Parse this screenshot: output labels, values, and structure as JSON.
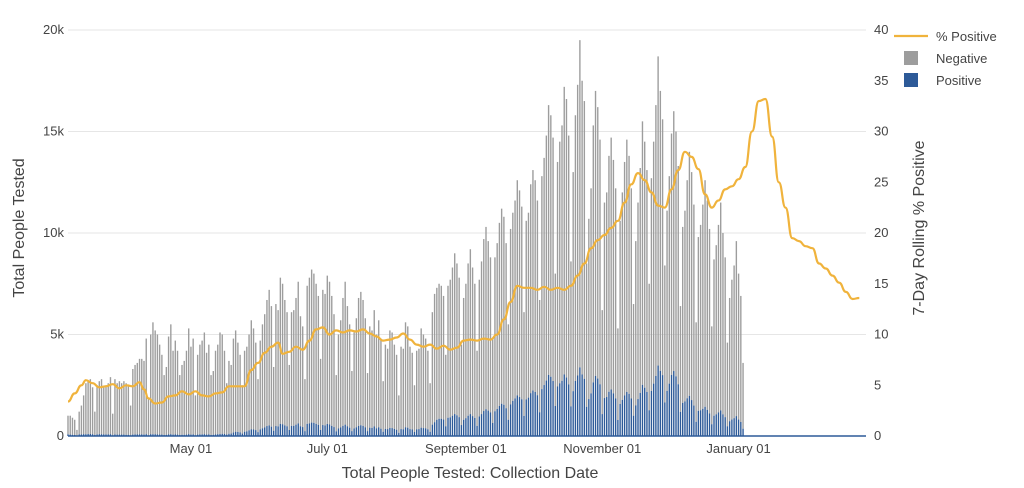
{
  "chart_data": {
    "type": "bar",
    "stacked": true,
    "secondary_line": true,
    "xlabel": "Total People Tested: Collection Date",
    "ylabel": "Total People Tested",
    "y2label": "7-Day Rolling % Positive",
    "x_range": [
      "2020-03-07",
      "2021-02-27"
    ],
    "ylim": [
      0,
      20000
    ],
    "y2lim": [
      0,
      40
    ],
    "x_ticks": [
      {
        "date": "2020-05-01",
        "label": "May 01"
      },
      {
        "date": "2020-07-01",
        "label": "July 01"
      },
      {
        "date": "2020-09-01",
        "label": "September 01"
      },
      {
        "date": "2020-11-01",
        "label": "November 01"
      },
      {
        "date": "2021-01-01",
        "label": "January 01"
      }
    ],
    "y_ticks": [
      {
        "value": 0,
        "label": "0"
      },
      {
        "value": 5000,
        "label": "5k"
      },
      {
        "value": 10000,
        "label": "10k"
      },
      {
        "value": 15000,
        "label": "15k"
      },
      {
        "value": 20000,
        "label": "20k"
      }
    ],
    "y2_ticks": [
      {
        "value": 0,
        "label": "0"
      },
      {
        "value": 5,
        "label": "5"
      },
      {
        "value": 10,
        "label": "10"
      },
      {
        "value": 15,
        "label": "15"
      },
      {
        "value": 20,
        "label": "20"
      },
      {
        "value": 25,
        "label": "25"
      },
      {
        "value": 30,
        "label": "30"
      },
      {
        "value": 35,
        "label": "35"
      },
      {
        "value": 40,
        "label": "40"
      }
    ],
    "gridlines": true,
    "legend_position": "top-right",
    "series": [
      {
        "name": "% Positive",
        "kind": "line",
        "axis": "right",
        "color": "#f0b33c"
      },
      {
        "name": "Negative",
        "kind": "bar",
        "axis": "left",
        "color": "#9d9d9d"
      },
      {
        "name": "Positive",
        "kind": "bar",
        "axis": "left",
        "color": "#2d5a98"
      }
    ],
    "daily_start": "2020-03-07",
    "total_tested_daily": [
      1000,
      1000,
      900,
      800,
      300,
      1200,
      1500,
      2000,
      2600,
      2700,
      2800,
      2400,
      1200,
      2500,
      2700,
      2800,
      2400,
      2500,
      2600,
      2900,
      1100,
      2800,
      2600,
      2700,
      2600,
      2700,
      2600,
      2500,
      1500,
      3300,
      3500,
      3600,
      3800,
      3800,
      3700,
      4800,
      1800,
      5000,
      5600,
      5200,
      5000,
      4500,
      4000,
      3000,
      3400,
      4900,
      5500,
      4200,
      4700,
      4200,
      3000,
      3500,
      3700,
      4200,
      5300,
      4400,
      4800,
      2000,
      4000,
      4500,
      4700,
      5100,
      4100,
      4500,
      3000,
      3200,
      4200,
      4500,
      5100,
      5000,
      4200,
      2600,
      3700,
      3500,
      4800,
      5200,
      4600,
      4000,
      2500,
      4200,
      4400,
      5000,
      5700,
      5300,
      4600,
      2800,
      4700,
      5500,
      6000,
      6700,
      7200,
      6400,
      3400,
      6500,
      6200,
      7800,
      7500,
      6700,
      6100,
      3500,
      6100,
      6200,
      6800,
      7600,
      5900,
      5400,
      2800,
      7400,
      7800,
      8200,
      8000,
      7500,
      6900,
      3800,
      7200,
      7000,
      7900,
      7600,
      6900,
      6000,
      3000,
      5000,
      5700,
      6800,
      7600,
      6400,
      5500,
      3200,
      5100,
      5800,
      6800,
      7100,
      6700,
      5800,
      3100,
      5400,
      5200,
      6200,
      5000,
      5700,
      4800,
      2700,
      4500,
      4300,
      5200,
      5100,
      4500,
      4000,
      2000,
      4400,
      4300,
      5600,
      5400,
      4400,
      4100,
      2500,
      4200,
      4300,
      5300,
      5000,
      4800,
      4200,
      2600,
      6100,
      7000,
      7300,
      7500,
      7400,
      6900,
      4000,
      7400,
      7700,
      8300,
      9000,
      8500,
      7800,
      4500,
      6800,
      7500,
      8500,
      9200,
      8300,
      7500,
      4200,
      7700,
      8600,
      9700,
      10300,
      9600,
      8800,
      4800,
      8800,
      9500,
      10500,
      11200,
      10800,
      9500,
      5500,
      10200,
      11000,
      11600,
      12600,
      12100,
      11300,
      6100,
      10600,
      11000,
      12400,
      13100,
      12600,
      11600,
      6700,
      12800,
      13700,
      14800,
      16300,
      15800,
      14700,
      8000,
      13500,
      14500,
      15300,
      17200,
      16600,
      14800,
      8600,
      13000,
      15800,
      17300,
      19500,
      17500,
      16500,
      8500,
      10700,
      12200,
      15300,
      17000,
      16200,
      14600,
      6200,
      11500,
      12000,
      13800,
      14700,
      13600,
      12200,
      5300,
      10600,
      12000,
      13500,
      14600,
      13800,
      12200,
      6500,
      9600,
      11500,
      13200,
      15500,
      14500,
      13100,
      7500,
      12700,
      14500,
      16300,
      18700,
      17000,
      15600,
      8400,
      11100,
      12800,
      14900,
      16000,
      15000,
      13300,
      6400,
      10300,
      11100,
      12600,
      14000,
      13000,
      11400,
      5600,
      9800,
      10400,
      11400,
      12600,
      11600,
      10200,
      5400,
      8700,
      9400,
      10400,
      11500,
      10000,
      8800,
      4600,
      6800,
      7700,
      8400,
      9600,
      8000,
      6900,
      3600
    ],
    "positive_daily": [
      80,
      70,
      60,
      50,
      20,
      80,
      80,
      90,
      90,
      100,
      100,
      90,
      50,
      80,
      90,
      90,
      80,
      80,
      80,
      90,
      40,
      80,
      70,
      70,
      70,
      70,
      60,
      60,
      40,
      70,
      80,
      80,
      80,
      80,
      70,
      90,
      40,
      90,
      90,
      90,
      80,
      70,
      70,
      50,
      60,
      80,
      90,
      70,
      80,
      70,
      50,
      60,
      60,
      70,
      90,
      70,
      80,
      40,
      70,
      80,
      80,
      90,
      70,
      80,
      50,
      60,
      80,
      90,
      100,
      110,
      100,
      70,
      110,
      120,
      170,
      210,
      200,
      180,
      120,
      210,
      230,
      280,
      330,
      320,
      290,
      190,
      320,
      380,
      420,
      490,
      520,
      460,
      260,
      490,
      470,
      600,
      580,
      520,
      480,
      300,
      500,
      500,
      560,
      620,
      480,
      440,
      240,
      600,
      620,
      660,
      650,
      600,
      550,
      300,
      540,
      520,
      590,
      570,
      500,
      440,
      230,
      370,
      420,
      500,
      560,
      480,
      410,
      240,
      370,
      430,
      500,
      530,
      500,
      430,
      240,
      410,
      400,
      470,
      380,
      430,
      360,
      210,
      350,
      340,
      400,
      390,
      350,
      310,
      160,
      340,
      330,
      430,
      410,
      340,
      320,
      200,
      330,
      340,
      410,
      390,
      380,
      330,
      210,
      560,
      680,
      800,
      850,
      850,
      810,
      480,
      900,
      920,
      1000,
      1080,
      1020,
      930,
      540,
      800,
      880,
      1000,
      1080,
      980,
      890,
      500,
      960,
      1080,
      1230,
      1320,
      1250,
      1160,
      640,
      1220,
      1330,
      1480,
      1590,
      1540,
      1370,
      800,
      1560,
      1730,
      1850,
      2000,
      1920,
      1810,
      990,
      1800,
      1890,
      2110,
      2240,
      2170,
      2010,
      1170,
      2310,
      2510,
      2730,
      3010,
      2920,
      2710,
      1480,
      2440,
      2600,
      2720,
      3030,
      2880,
      2540,
      1460,
      2210,
      2710,
      2980,
      3380,
      3030,
      2820,
      1440,
      1820,
      2100,
      2640,
      2960,
      2830,
      2550,
      1080,
      1870,
      1920,
      2180,
      2290,
      2100,
      1850,
      790,
      1580,
      1780,
      2000,
      2170,
      2080,
      1850,
      1000,
      1510,
      1820,
      2120,
      2520,
      2380,
      2170,
      1270,
      2220,
      2580,
      2960,
      3470,
      3210,
      3000,
      1650,
      2220,
      2580,
      3010,
      3200,
      2940,
      2550,
      1190,
      1630,
      1700,
      1860,
      1980,
      1770,
      1500,
      700,
      1240,
      1270,
      1340,
      1440,
      1290,
      1110,
      580,
      1000,
      1070,
      1160,
      1260,
      1070,
      930,
      480,
      730,
      810,
      880,
      980,
      810,
      690,
      360
    ],
    "pct_positive_points": [
      [
        "2020-03-07",
        3.4
      ],
      [
        "2020-03-10",
        4.2
      ],
      [
        "2020-03-13",
        5.0
      ],
      [
        "2020-03-15",
        5.5
      ],
      [
        "2020-03-18",
        5.2
      ],
      [
        "2020-03-21",
        4.8
      ],
      [
        "2020-03-24",
        4.9
      ],
      [
        "2020-03-27",
        5.1
      ],
      [
        "2020-03-30",
        4.7
      ],
      [
        "2020-04-02",
        5.0
      ],
      [
        "2020-04-05",
        4.9
      ],
      [
        "2020-04-08",
        5.3
      ],
      [
        "2020-04-10",
        4.6
      ],
      [
        "2020-04-12",
        3.7
      ],
      [
        "2020-04-15",
        3.2
      ],
      [
        "2020-04-18",
        3.3
      ],
      [
        "2020-04-21",
        3.9
      ],
      [
        "2020-04-24",
        4.0
      ],
      [
        "2020-04-27",
        4.4
      ],
      [
        "2020-04-30",
        4.1
      ],
      [
        "2020-05-03",
        4.4
      ],
      [
        "2020-05-06",
        4.0
      ],
      [
        "2020-05-09",
        3.9
      ],
      [
        "2020-05-12",
        4.2
      ],
      [
        "2020-05-15",
        4.3
      ],
      [
        "2020-05-18",
        4.9
      ],
      [
        "2020-05-21",
        4.9
      ],
      [
        "2020-05-25",
        4.9
      ],
      [
        "2020-05-28",
        6.5
      ],
      [
        "2020-05-31",
        7.2
      ],
      [
        "2020-06-03",
        8.2
      ],
      [
        "2020-06-06",
        8.8
      ],
      [
        "2020-06-09",
        9.2
      ],
      [
        "2020-06-11",
        8.1
      ],
      [
        "2020-06-14",
        8.3
      ],
      [
        "2020-06-17",
        8.8
      ],
      [
        "2020-06-20",
        8.5
      ],
      [
        "2020-06-23",
        9.4
      ],
      [
        "2020-06-26",
        10.5
      ],
      [
        "2020-06-29",
        10.7
      ],
      [
        "2020-07-02",
        10.0
      ],
      [
        "2020-07-05",
        10.4
      ],
      [
        "2020-07-08",
        10.2
      ],
      [
        "2020-07-11",
        10.4
      ],
      [
        "2020-07-14",
        10.3
      ],
      [
        "2020-07-17",
        10.5
      ],
      [
        "2020-07-20",
        10.1
      ],
      [
        "2020-07-23",
        9.8
      ],
      [
        "2020-07-26",
        9.4
      ],
      [
        "2020-07-29",
        9.5
      ],
      [
        "2020-08-01",
        9.7
      ],
      [
        "2020-08-04",
        10.1
      ],
      [
        "2020-08-07",
        9.5
      ],
      [
        "2020-08-10",
        9.0
      ],
      [
        "2020-08-13",
        8.8
      ],
      [
        "2020-08-16",
        9.0
      ],
      [
        "2020-08-19",
        8.6
      ],
      [
        "2020-08-22",
        8.9
      ],
      [
        "2020-08-25",
        8.5
      ],
      [
        "2020-08-28",
        8.7
      ],
      [
        "2020-08-31",
        9.4
      ],
      [
        "2020-09-03",
        9.5
      ],
      [
        "2020-09-06",
        9.4
      ],
      [
        "2020-09-09",
        9.6
      ],
      [
        "2020-09-12",
        9.5
      ],
      [
        "2020-09-15",
        10.0
      ],
      [
        "2020-09-18",
        11.5
      ],
      [
        "2020-09-21",
        13.2
      ],
      [
        "2020-09-24",
        14.8
      ],
      [
        "2020-09-27",
        14.6
      ],
      [
        "2020-09-30",
        14.6
      ],
      [
        "2020-10-03",
        14.4
      ],
      [
        "2020-10-06",
        14.7
      ],
      [
        "2020-10-09",
        14.4
      ],
      [
        "2020-10-12",
        14.6
      ],
      [
        "2020-10-15",
        14.4
      ],
      [
        "2020-10-18",
        14.8
      ],
      [
        "2020-10-21",
        15.8
      ],
      [
        "2020-10-24",
        17.0
      ],
      [
        "2020-10-27",
        18.5
      ],
      [
        "2020-10-30",
        19.3
      ],
      [
        "2020-11-02",
        19.8
      ],
      [
        "2020-11-05",
        20.5
      ],
      [
        "2020-11-08",
        21.2
      ],
      [
        "2020-11-11",
        23.0
      ],
      [
        "2020-11-14",
        24.8
      ],
      [
        "2020-11-17",
        25.9
      ],
      [
        "2020-11-20",
        25.2
      ],
      [
        "2020-11-23",
        24.0
      ],
      [
        "2020-11-26",
        22.7
      ],
      [
        "2020-11-29",
        22.5
      ],
      [
        "2020-12-02",
        24.3
      ],
      [
        "2020-12-05",
        26.2
      ],
      [
        "2020-12-08",
        28.0
      ],
      [
        "2020-12-11",
        27.5
      ],
      [
        "2020-12-14",
        26.3
      ],
      [
        "2020-12-17",
        23.8
      ],
      [
        "2020-12-20",
        22.5
      ],
      [
        "2020-12-23",
        23.2
      ],
      [
        "2020-12-26",
        24.3
      ],
      [
        "2020-12-29",
        24.6
      ],
      [
        "2021-01-01",
        25.3
      ],
      [
        "2021-01-04",
        26.5
      ],
      [
        "2021-01-07",
        30.0
      ],
      [
        "2021-01-10",
        33.0
      ],
      [
        "2021-01-13",
        33.2
      ],
      [
        "2021-01-16",
        29.5
      ],
      [
        "2021-01-19",
        25.0
      ],
      [
        "2021-01-22",
        22.5
      ],
      [
        "2021-01-25",
        19.5
      ],
      [
        "2021-01-28",
        19.2
      ],
      [
        "2021-01-31",
        18.7
      ],
      [
        "2021-02-03",
        18.5
      ],
      [
        "2021-02-06",
        17.0
      ],
      [
        "2021-02-09",
        16.5
      ],
      [
        "2021-02-12",
        15.8
      ],
      [
        "2021-02-15",
        15.1
      ],
      [
        "2021-02-18",
        14.2
      ],
      [
        "2021-02-21",
        13.5
      ],
      [
        "2021-02-24",
        13.6
      ]
    ]
  }
}
